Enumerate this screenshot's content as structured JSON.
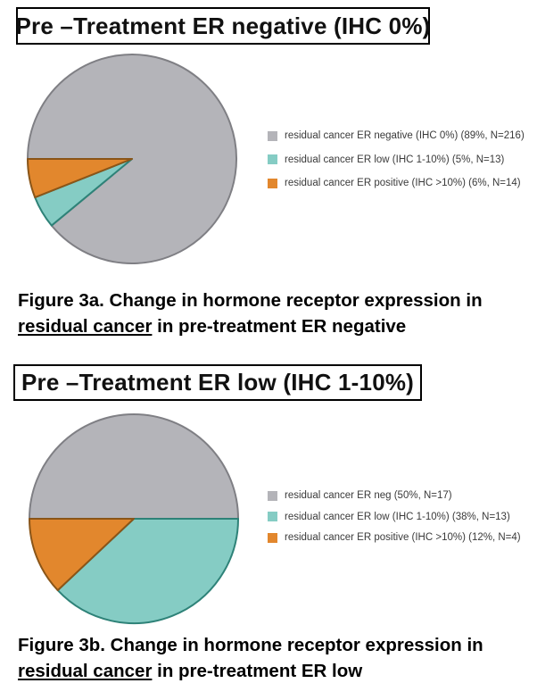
{
  "page": {
    "background": "#ffffff"
  },
  "colors": {
    "gray": {
      "fill": "#b4b4b9",
      "stroke": "#7f7f84"
    },
    "teal": {
      "fill": "#85ccc4",
      "stroke": "#2e8278"
    },
    "orange": {
      "fill": "#e2872d",
      "stroke": "#8a5518"
    },
    "legend_text": "#3a3a3a",
    "title_text": "#111111",
    "caption_text": "#000000"
  },
  "chart_data": [
    {
      "type": "pie",
      "title": "Pre –Treatment ER negative (IHC 0%)",
      "start_angle_deg_clockwise_from_top": 270,
      "direction": "clockwise",
      "legend_position": "right",
      "categories": [
        "residual cancer ER negative (IHC 0%)",
        "residual cancer ER low (IHC 1-10%)",
        "residual cancer ER positive (IHC >10%)"
      ],
      "values": [
        89,
        5,
        6
      ],
      "counts": [
        216,
        13,
        14
      ],
      "slices": [
        {
          "label": "residual cancer ER negative (IHC 0%) (89%, N=216)",
          "value": 89,
          "n": 216,
          "color_key": "gray"
        },
        {
          "label": "residual cancer ER low (IHC 1-10%) (5%, N=13)",
          "value": 5,
          "n": 13,
          "color_key": "teal"
        },
        {
          "label": "residual cancer ER positive (IHC >10%) (6%, N=14)",
          "value": 6,
          "n": 14,
          "color_key": "orange"
        }
      ],
      "caption": {
        "before_underline": "Figure 3a. Change in hormone receptor expression in ",
        "underlined": "residual cancer",
        "after_underline": " in pre-treatment ER negative"
      }
    },
    {
      "type": "pie",
      "title": "Pre –Treatment ER low (IHC 1-10%)",
      "start_angle_deg_clockwise_from_top": 270,
      "direction": "clockwise",
      "legend_position": "right",
      "categories": [
        "residual cancer ER neg",
        "residual cancer ER low (IHC 1-10%)",
        "residual cancer ER positive (IHC >10%)"
      ],
      "values": [
        50,
        38,
        12
      ],
      "counts": [
        17,
        13,
        4
      ],
      "slices": [
        {
          "label": "residual cancer ER neg (50%, N=17)",
          "value": 50,
          "n": 17,
          "color_key": "gray"
        },
        {
          "label": "residual cancer ER low (IHC 1-10%) (38%, N=13)",
          "value": 38,
          "n": 13,
          "color_key": "teal"
        },
        {
          "label": "residual cancer ER positive (IHC >10%) (12%, N=4)",
          "value": 12,
          "n": 4,
          "color_key": "orange"
        }
      ],
      "caption": {
        "before_underline": "Figure 3b. Change in hormone receptor expression in ",
        "underlined": "residual cancer",
        "after_underline": " in pre-treatment ER low"
      }
    }
  ]
}
